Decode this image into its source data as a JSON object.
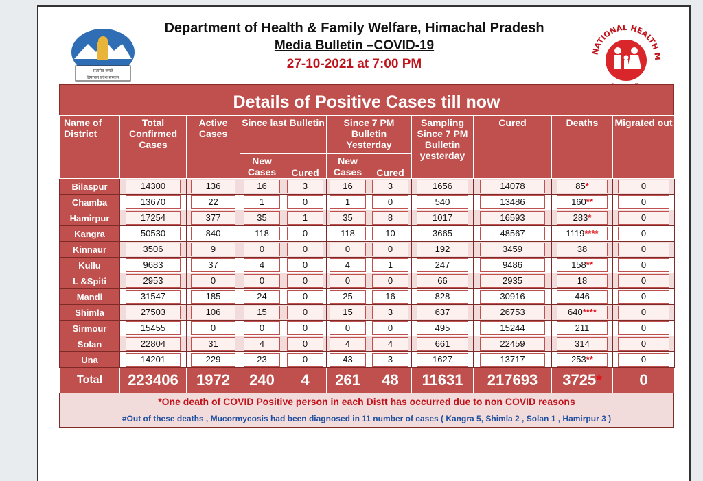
{
  "header": {
    "department": "Department of Health & Family Welfare, Himachal Pradesh",
    "bulletin": "Media Bulletin –COVID-19",
    "datetime": "27-10-2021 at 7:00 PM",
    "left_logo_text_1": "हिमाचल प्रदेश सरकार",
    "right_logo_ring": "NATIONAL HEALTH MISSION",
    "right_logo_caption": "राष्ट्रीय स्वास्थ्य मिशन"
  },
  "report": {
    "banner": "Details of Positive Cases till now",
    "columns": {
      "district": "Name of District",
      "total_confirmed": "Total Confirmed Cases",
      "active": "Active Cases",
      "since_last": "Since last Bulletin",
      "since_7pm": "Since 7 PM Bulletin Yesterday",
      "new_cases": "New Cases",
      "cured": "Cured",
      "sampling": "Sampling Since 7 PM Bulletin yesterday",
      "cured_total": "Cured",
      "deaths": "Deaths",
      "migrated": "Migrated out"
    },
    "rows": [
      [
        "Bilaspur",
        "14300",
        "136",
        "16",
        "3",
        "16",
        "3",
        "1656",
        "14078",
        "85",
        "0"
      ],
      [
        "Chamba",
        "13670",
        "22",
        "1",
        "0",
        "1",
        "0",
        "540",
        "13486",
        "160",
        "0"
      ],
      [
        "Hamirpur",
        "17254",
        "377",
        "35",
        "1",
        "35",
        "8",
        "1017",
        "16593",
        "283",
        "0"
      ],
      [
        "Kangra",
        "50530",
        "840",
        "118",
        "0",
        "118",
        "10",
        "3665",
        "48567",
        "1119",
        "0"
      ],
      [
        "Kinnaur",
        "3506",
        "9",
        "0",
        "0",
        "0",
        "0",
        "192",
        "3459",
        "38",
        "0"
      ],
      [
        "Kullu",
        "9683",
        "37",
        "4",
        "0",
        "4",
        "1",
        "247",
        "9486",
        "158",
        "0"
      ],
      [
        "L &Spiti",
        "2953",
        "0",
        "0",
        "0",
        "0",
        "0",
        "66",
        "2935",
        "18",
        "0"
      ],
      [
        "Mandi",
        "31547",
        "185",
        "24",
        "0",
        "25",
        "16",
        "828",
        "30916",
        "446",
        "0"
      ],
      [
        "Shimla",
        "27503",
        "106",
        "15",
        "0",
        "15",
        "3",
        "637",
        "26753",
        "640",
        "0"
      ],
      [
        "Sirmour",
        "15455",
        "0",
        "0",
        "0",
        "0",
        "0",
        "495",
        "15244",
        "211",
        "0"
      ],
      [
        "Solan",
        "22804",
        "31",
        "4",
        "0",
        "4",
        "4",
        "661",
        "22459",
        "314",
        "0"
      ],
      [
        "Una",
        "14201",
        "229",
        "23",
        "0",
        "43",
        "3",
        "1627",
        "13717",
        "253",
        "0"
      ]
    ],
    "death_stars": [
      "*",
      "**",
      "*",
      "****",
      "",
      "**",
      "",
      "",
      "****",
      "",
      "",
      "**"
    ],
    "totals": [
      "Total",
      "223406",
      "1972",
      "240",
      "4",
      "261",
      "48",
      "11631",
      "217693",
      "3725",
      "0"
    ],
    "total_death_star": "*",
    "note_1": "*One death of COVID Positive person in each Distt has occurred due to non COVID reasons",
    "note_2": "#Out of these deaths , Mucormycosis had been diagnosed in 11 number of cases ( Kangra 5, Shimla 2 , Solan 1 , Hamirpur 3 )"
  },
  "colors": {
    "banner": "#c0504d",
    "row_tint": "#f2dcdb",
    "accent_red": "#c0141c",
    "note_blue": "#1f4fa0"
  }
}
